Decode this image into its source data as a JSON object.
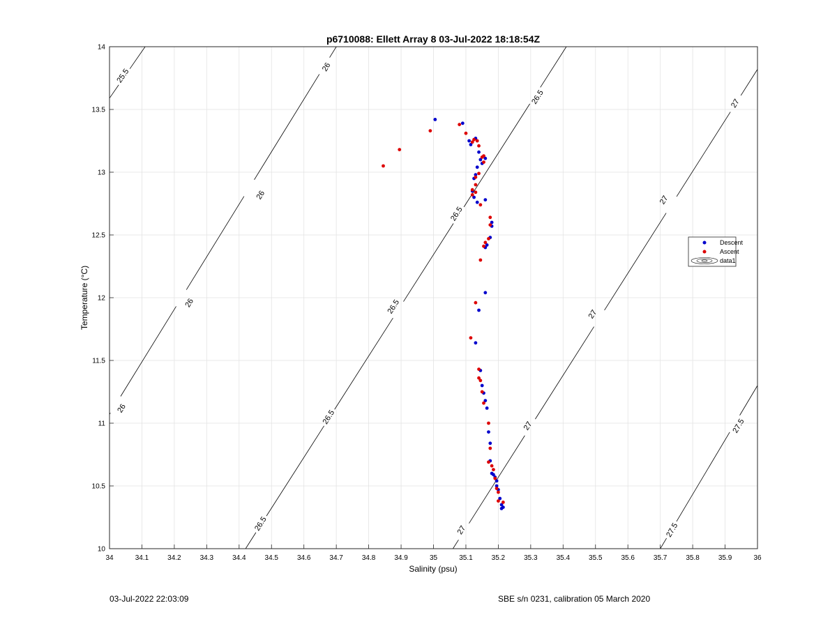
{
  "footer": {
    "left": "03-Jul-2022 22:03:09",
    "right": "SBE s/n 0231, calibration 05 March 2020"
  },
  "chart_data": {
    "type": "scatter",
    "title": "p6710088: Ellett Array 8 03-Jul-2022 18:18:54Z",
    "xlabel": "Salinity (psu)",
    "ylabel": "Temperature (°C)",
    "xlim": [
      34,
      36
    ],
    "ylim": [
      10,
      14
    ],
    "x_ticks": [
      34,
      34.1,
      34.2,
      34.3,
      34.4,
      34.5,
      34.6,
      34.7,
      34.8,
      34.9,
      35,
      35.1,
      35.2,
      35.3,
      35.4,
      35.5,
      35.6,
      35.7,
      35.8,
      35.9,
      36
    ],
    "y_ticks": [
      10,
      10.5,
      11,
      11.5,
      12,
      12.5,
      13,
      13.5,
      14
    ],
    "grid": true,
    "legend_placement": "right",
    "legend": [
      "Descent",
      "Ascent",
      "data1"
    ],
    "colors": {
      "descent": "#0000cc",
      "ascent": "#dd0000",
      "contour": "#000000",
      "grid": "#e3e3e3"
    },
    "contours": [
      {
        "level": "25.5",
        "points": [
          [
            34,
            13.59
          ],
          [
            34.11,
            14
          ]
        ],
        "labels": [
          [
            34.04,
            13.77
          ]
        ]
      },
      {
        "level": "26",
        "points": [
          [
            34,
            11.07
          ],
          [
            34.7,
            14
          ]
        ],
        "labels": [
          [
            34.036,
            11.12
          ],
          [
            34.245,
            11.96
          ],
          [
            34.465,
            12.82
          ],
          [
            34.668,
            13.84
          ]
        ]
      },
      {
        "level": "26.5",
        "points": [
          [
            34.42,
            10
          ],
          [
            35.41,
            14
          ]
        ],
        "labels": [
          [
            34.465,
            10.2
          ],
          [
            34.675,
            11.05
          ],
          [
            34.875,
            11.93
          ],
          [
            35.07,
            12.67
          ],
          [
            35.32,
            13.6
          ]
        ]
      },
      {
        "level": "27",
        "points": [
          [
            35.06,
            10
          ],
          [
            36,
            13.82
          ]
        ],
        "labels": [
          [
            35.085,
            10.15
          ],
          [
            35.29,
            10.98
          ],
          [
            35.49,
            11.87
          ],
          [
            35.71,
            12.78
          ],
          [
            35.93,
            13.55
          ]
        ]
      },
      {
        "level": "27.5",
        "points": [
          [
            35.7,
            10
          ],
          [
            36,
            11.3
          ]
        ],
        "labels": [
          [
            35.735,
            10.15
          ],
          [
            35.94,
            10.98
          ]
        ]
      }
    ],
    "series": [
      {
        "name": "Descent",
        "points": [
          [
            35.005,
            13.42
          ],
          [
            35.09,
            13.39
          ],
          [
            35.13,
            13.27
          ],
          [
            35.11,
            13.25
          ],
          [
            35.115,
            13.22
          ],
          [
            35.14,
            13.16
          ],
          [
            35.145,
            13.1
          ],
          [
            35.16,
            13.11
          ],
          [
            35.15,
            13.07
          ],
          [
            35.135,
            13.04
          ],
          [
            35.13,
            12.98
          ],
          [
            35.125,
            12.95
          ],
          [
            35.12,
            12.85
          ],
          [
            35.125,
            12.8
          ],
          [
            35.16,
            12.78
          ],
          [
            35.135,
            12.76
          ],
          [
            35.18,
            12.6
          ],
          [
            35.18,
            12.57
          ],
          [
            35.175,
            12.48
          ],
          [
            35.165,
            12.42
          ],
          [
            35.16,
            12.4
          ],
          [
            35.16,
            12.04
          ],
          [
            35.14,
            11.9
          ],
          [
            35.13,
            11.64
          ],
          [
            35.145,
            11.42
          ],
          [
            35.15,
            11.3
          ],
          [
            35.155,
            11.24
          ],
          [
            35.16,
            11.18
          ],
          [
            35.165,
            11.12
          ],
          [
            35.17,
            10.93
          ],
          [
            35.175,
            10.84
          ],
          [
            35.175,
            10.7
          ],
          [
            35.18,
            10.6
          ],
          [
            35.185,
            10.59
          ],
          [
            35.19,
            10.57
          ],
          [
            35.195,
            10.54
          ],
          [
            35.195,
            10.5
          ],
          [
            35.2,
            10.47
          ],
          [
            35.205,
            10.4
          ],
          [
            35.21,
            10.35
          ],
          [
            35.215,
            10.33
          ],
          [
            35.21,
            10.32
          ]
        ]
      },
      {
        "name": "Ascent",
        "points": [
          [
            34.845,
            13.05
          ],
          [
            34.895,
            13.18
          ],
          [
            34.99,
            13.33
          ],
          [
            35.08,
            13.38
          ],
          [
            35.1,
            13.31
          ],
          [
            35.125,
            13.26
          ],
          [
            35.135,
            13.25
          ],
          [
            35.12,
            13.24
          ],
          [
            35.14,
            13.21
          ],
          [
            35.155,
            13.13
          ],
          [
            35.15,
            13.12
          ],
          [
            35.155,
            13.08
          ],
          [
            35.14,
            12.99
          ],
          [
            35.13,
            12.96
          ],
          [
            35.13,
            12.9
          ],
          [
            35.12,
            12.86
          ],
          [
            35.13,
            12.84
          ],
          [
            35.12,
            12.82
          ],
          [
            35.145,
            12.74
          ],
          [
            35.175,
            12.64
          ],
          [
            35.175,
            12.58
          ],
          [
            35.17,
            12.47
          ],
          [
            35.16,
            12.44
          ],
          [
            35.155,
            12.41
          ],
          [
            35.145,
            12.3
          ],
          [
            35.13,
            11.96
          ],
          [
            35.115,
            11.68
          ],
          [
            35.14,
            11.43
          ],
          [
            35.14,
            11.36
          ],
          [
            35.145,
            11.34
          ],
          [
            35.15,
            11.25
          ],
          [
            35.155,
            11.16
          ],
          [
            35.17,
            11.0
          ],
          [
            35.175,
            10.8
          ],
          [
            35.17,
            10.69
          ],
          [
            35.18,
            10.66
          ],
          [
            35.185,
            10.63
          ],
          [
            35.19,
            10.56
          ],
          [
            35.195,
            10.48
          ],
          [
            35.2,
            10.45
          ],
          [
            35.2,
            10.38
          ],
          [
            35.215,
            10.37
          ]
        ]
      }
    ]
  }
}
